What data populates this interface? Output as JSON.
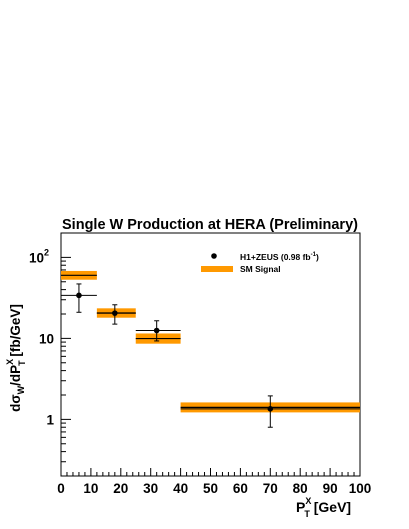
{
  "chart_data": {
    "type": "scatter",
    "title": "Single W Production at HERA (Preliminary)",
    "ylabel": {
      "parts": [
        "d",
        "σ",
        "W",
        "/dP",
        "X",
        "T",
        " [fb/GeV]"
      ]
    },
    "xlabel": {
      "parts": [
        "P",
        "X",
        "T",
        " [GeV]"
      ]
    },
    "xlim": [
      0,
      100
    ],
    "ylim": [
      0.2,
      200
    ],
    "yscale": "log",
    "x_ticks": [
      "0",
      "10",
      "20",
      "30",
      "40",
      "50",
      "60",
      "70",
      "80",
      "90",
      "100"
    ],
    "y_ticks": [
      {
        "value": 100,
        "label": "10",
        "exp": "2"
      },
      {
        "value": 10,
        "label": "10",
        "exp": ""
      },
      {
        "value": 1,
        "label": "1",
        "exp": ""
      }
    ],
    "legend": {
      "placement": "top-right",
      "data_label": "H1+ZEUS (0.98 fb",
      "data_label_exp": "-1",
      "data_label_end": ")",
      "sm_label": "SM Signal"
    },
    "series": [
      {
        "name": "H1+ZEUS (0.98 fb-1)",
        "kind": "points",
        "points": [
          {
            "x": 6,
            "xlow": 0,
            "xhigh": 12,
            "y": 34,
            "ylow": 21,
            "yhigh": 47
          },
          {
            "x": 18,
            "xlow": 12,
            "xhigh": 25,
            "y": 20.5,
            "ylow": 15,
            "yhigh": 26
          },
          {
            "x": 32,
            "xlow": 25,
            "xhigh": 40,
            "y": 12.5,
            "ylow": 9.3,
            "yhigh": 16.5
          },
          {
            "x": 70,
            "xlow": 40,
            "xhigh": 100,
            "y": 1.35,
            "ylow": 0.8,
            "yhigh": 1.95
          }
        ]
      },
      {
        "name": "SM Signal",
        "kind": "bands",
        "bins": [
          {
            "xlow": 0,
            "xhigh": 12,
            "ylow": 53,
            "yhigh": 68
          },
          {
            "xlow": 12,
            "xhigh": 25,
            "ylow": 18,
            "yhigh": 23.5
          },
          {
            "xlow": 25,
            "xhigh": 40,
            "ylow": 8.6,
            "yhigh": 11.5
          },
          {
            "xlow": 40,
            "xhigh": 100,
            "ylow": 1.22,
            "yhigh": 1.62
          }
        ]
      }
    ],
    "colors": {
      "sm_band": "#ff9900",
      "sm_line": "#000000",
      "data": "#000000"
    }
  }
}
